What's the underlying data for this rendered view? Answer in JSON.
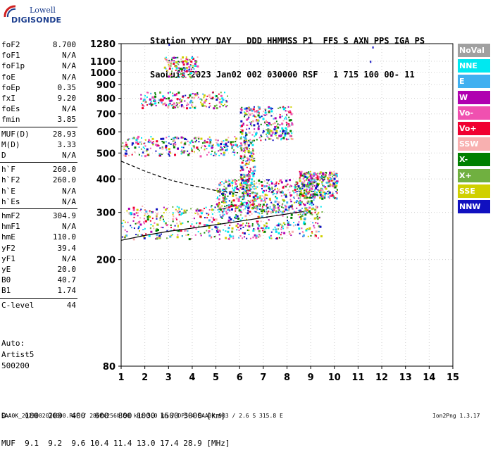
{
  "logo": {
    "brand": "Lowell",
    "product": "DIGISONDE"
  },
  "header": {
    "line1": "Station YYYY DAY   DDD HHMMSS P1  FFS S AXN PPS IGA PS",
    "line2": "SaoLuis 2023 Jan02 002 030000 RSF   1 715 100 00- 11"
  },
  "params": [
    {
      "name": "foF2",
      "value": "8.700"
    },
    {
      "name": "foF1",
      "value": "N/A"
    },
    {
      "name": "foF1p",
      "value": "N/A"
    },
    {
      "name": "foE",
      "value": "N/A"
    },
    {
      "name": "foEp",
      "value": "0.35"
    },
    {
      "name": "fxI",
      "value": "9.20"
    },
    {
      "name": "foEs",
      "value": "N/A"
    },
    {
      "name": "fmin",
      "value": "3.85"
    },
    {
      "name": "MUF(D)",
      "value": "28.93"
    },
    {
      "name": "M(D)",
      "value": "3.33"
    },
    {
      "name": "D",
      "value": "N/A"
    },
    {
      "name": "h`F",
      "value": "260.0"
    },
    {
      "name": "h`F2",
      "value": "260.0"
    },
    {
      "name": "h`E",
      "value": "N/A"
    },
    {
      "name": "h`Es",
      "value": "N/A"
    },
    {
      "name": "hmF2",
      "value": "304.9"
    },
    {
      "name": "hmF1",
      "value": "N/A"
    },
    {
      "name": "hmE",
      "value": "110.0"
    },
    {
      "name": "yF2",
      "value": "39.4"
    },
    {
      "name": "yF1",
      "value": "N/A"
    },
    {
      "name": "yE",
      "value": "20.0"
    },
    {
      "name": "B0",
      "value": "40.7"
    },
    {
      "name": "B1",
      "value": "1.74"
    },
    {
      "name": "C-level",
      "value": "44"
    }
  ],
  "auto": {
    "line1": "Auto:",
    "line2": "Artist5",
    "line3": "500200"
  },
  "muf_table": {
    "d_label": "D",
    "distances": [
      "100",
      "200",
      "400",
      "600",
      "800",
      "1000",
      "1500",
      "3000"
    ],
    "d_unit": "[km]",
    "muf_label": "MUF",
    "mufs": [
      "9.1",
      "9.2",
      "9.6",
      "10.4",
      "11.4",
      "13.0",
      "17.4",
      "28.9"
    ],
    "muf_unit": "[MHz]"
  },
  "footer": {
    "left": "SAA0K_2023002030000.RSF / 280fx256h 50 kHz 5.0 km / DPS-4 SAA0K 903 / 2.6 S 315.8 E",
    "right": "Ion2Png 1.3.17"
  },
  "legend": [
    {
      "label": "NoVal",
      "color": "#a0a0a0"
    },
    {
      "label": "NNE",
      "color": "#00e8f0"
    },
    {
      "label": "E",
      "color": "#40b0f0"
    },
    {
      "label": "W",
      "color": "#b000b0"
    },
    {
      "label": "Vo-",
      "color": "#f050b0"
    },
    {
      "label": "Vo+",
      "color": "#f00030"
    },
    {
      "label": "SSW",
      "color": "#f8b0b0"
    },
    {
      "label": "X-",
      "color": "#008000"
    },
    {
      "label": "X+",
      "color": "#70b040"
    },
    {
      "label": "SSE",
      "color": "#d0d000"
    },
    {
      "label": "NNW",
      "color": "#1010c0"
    }
  ],
  "chart_data": {
    "type": "scatter",
    "xlabel": "",
    "ylabel": "",
    "xlim": [
      1,
      15
    ],
    "x_ticks": [
      1,
      2,
      3,
      4,
      5,
      6,
      7,
      8,
      9,
      10,
      11,
      12,
      13,
      14,
      15
    ],
    "y_ticks": [
      80,
      200,
      300,
      400,
      500,
      600,
      700,
      800,
      900,
      1000,
      1100,
      1280
    ],
    "y_scale": "log",
    "grid": true,
    "o_trace": {
      "x": [
        1.0,
        2.0,
        3.0,
        4.0,
        5.0,
        6.0,
        7.0,
        8.0,
        8.4,
        8.7
      ],
      "y": [
        236,
        246,
        255,
        262,
        270,
        278,
        287,
        296,
        300,
        302
      ]
    },
    "x_trace": {
      "x": [
        1.0,
        2.0,
        3.0,
        4.0,
        5.0,
        6.0
      ],
      "y": [
        466,
        428,
        398,
        378,
        362,
        355
      ]
    },
    "echo_clusters": [
      {
        "x": [
          1.0,
          9.5
        ],
        "y": [
          240,
          320
        ],
        "density": 1.0
      },
      {
        "x": [
          5.0,
          9.2
        ],
        "y": [
          300,
          400
        ],
        "density": 0.9
      },
      {
        "x": [
          1.0,
          6.0
        ],
        "y": [
          490,
          580
        ],
        "density": 0.5
      },
      {
        "x": [
          6.0,
          8.2
        ],
        "y": [
          560,
          750
        ],
        "density": 0.5
      },
      {
        "x": [
          1.8,
          5.5
        ],
        "y": [
          740,
          850
        ],
        "density": 0.35
      },
      {
        "x": [
          2.8,
          4.2
        ],
        "y": [
          960,
          1150
        ],
        "density": 0.25
      },
      {
        "x": [
          6.0,
          6.6
        ],
        "y": [
          320,
          560
        ],
        "density": 0.4
      },
      {
        "x": [
          8.5,
          10.1
        ],
        "y": [
          340,
          430
        ],
        "density": 0.6
      }
    ],
    "isolated_echoes": {
      "x": [
        11.5,
        11.6,
        3.0
      ],
      "y": [
        1105,
        1250,
        1280
      ]
    }
  }
}
